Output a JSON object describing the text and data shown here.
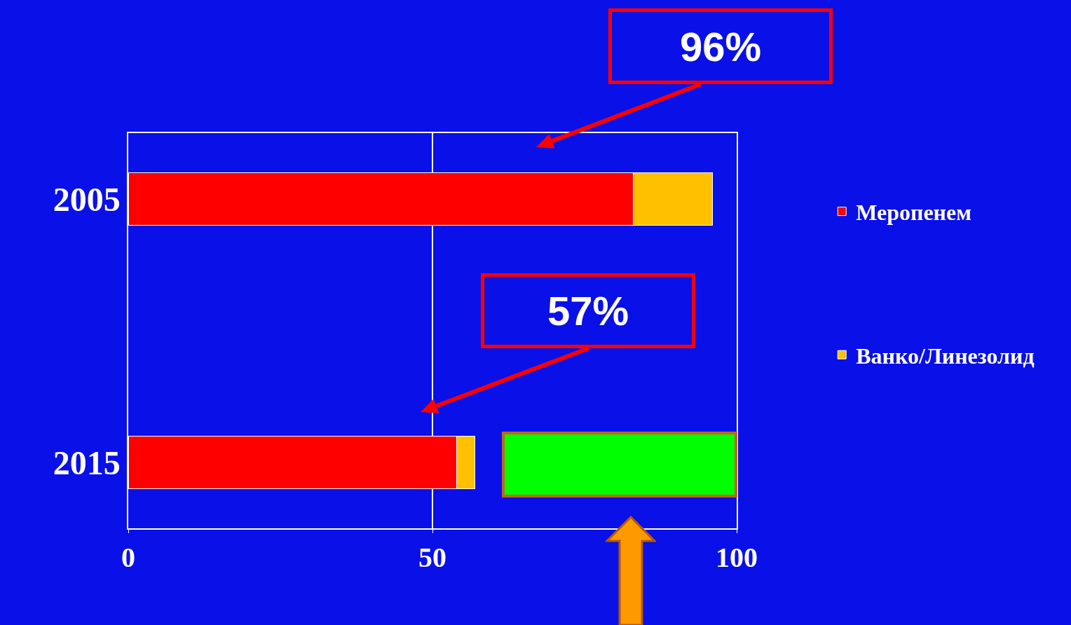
{
  "chart_data": {
    "type": "bar",
    "orientation": "horizontal",
    "stacked": true,
    "categories": [
      "2005",
      null,
      "2015"
    ],
    "series": [
      {
        "name": "Меропенем",
        "color": "#ff0000",
        "values": [
          83,
          null,
          54
        ]
      },
      {
        "name": "Ванко/Линезолид",
        "color": "#ffc000",
        "values": [
          13,
          null,
          3
        ]
      }
    ],
    "xlim": [
      0,
      100
    ],
    "xticks": [
      0,
      50,
      100
    ],
    "grid": "x",
    "legend": "right",
    "annotations": [
      "96%",
      "57%"
    ]
  }
}
